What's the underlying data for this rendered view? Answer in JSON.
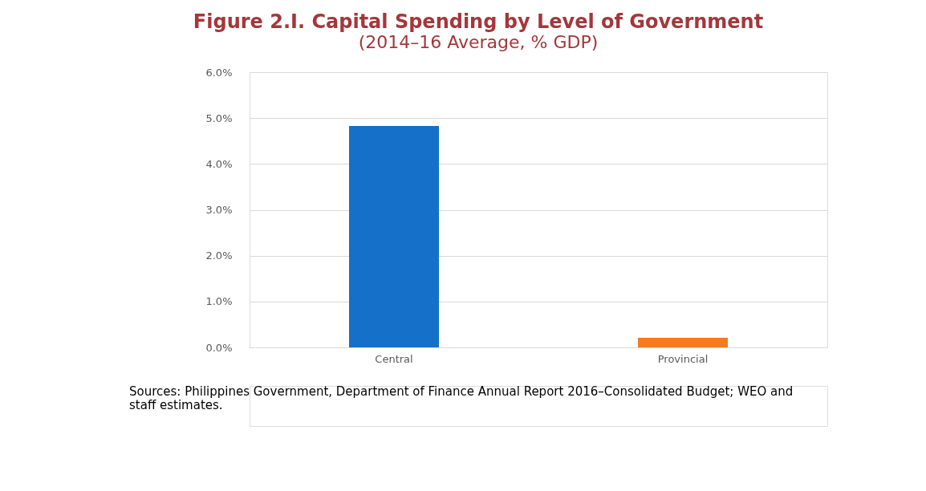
{
  "chart_data": {
    "type": "bar",
    "title": "Figure 2.I. Capital Spending by Level of Government",
    "subtitle": "(2014–16 Average, % GDP)",
    "categories": [
      "Central",
      "Provincial"
    ],
    "values": [
      4.83,
      0.21
    ],
    "colors": [
      "#1570c9",
      "#f47b20"
    ],
    "ylim": [
      0,
      6
    ],
    "yticks": [
      {
        "value": 0,
        "label": "0.0%"
      },
      {
        "value": 1,
        "label": "1.0%"
      },
      {
        "value": 2,
        "label": "2.0%"
      },
      {
        "value": 3,
        "label": "3.0%"
      },
      {
        "value": 4,
        "label": "4.0%"
      },
      {
        "value": 5,
        "label": "5.0%"
      },
      {
        "value": 6,
        "label": "6.0%"
      }
    ],
    "grid": "y",
    "annotations": [
      "Sources: Philippines Government, Department of Finance Annual Report 2016–Consolidated Budget; WEO and staff estimates."
    ]
  }
}
